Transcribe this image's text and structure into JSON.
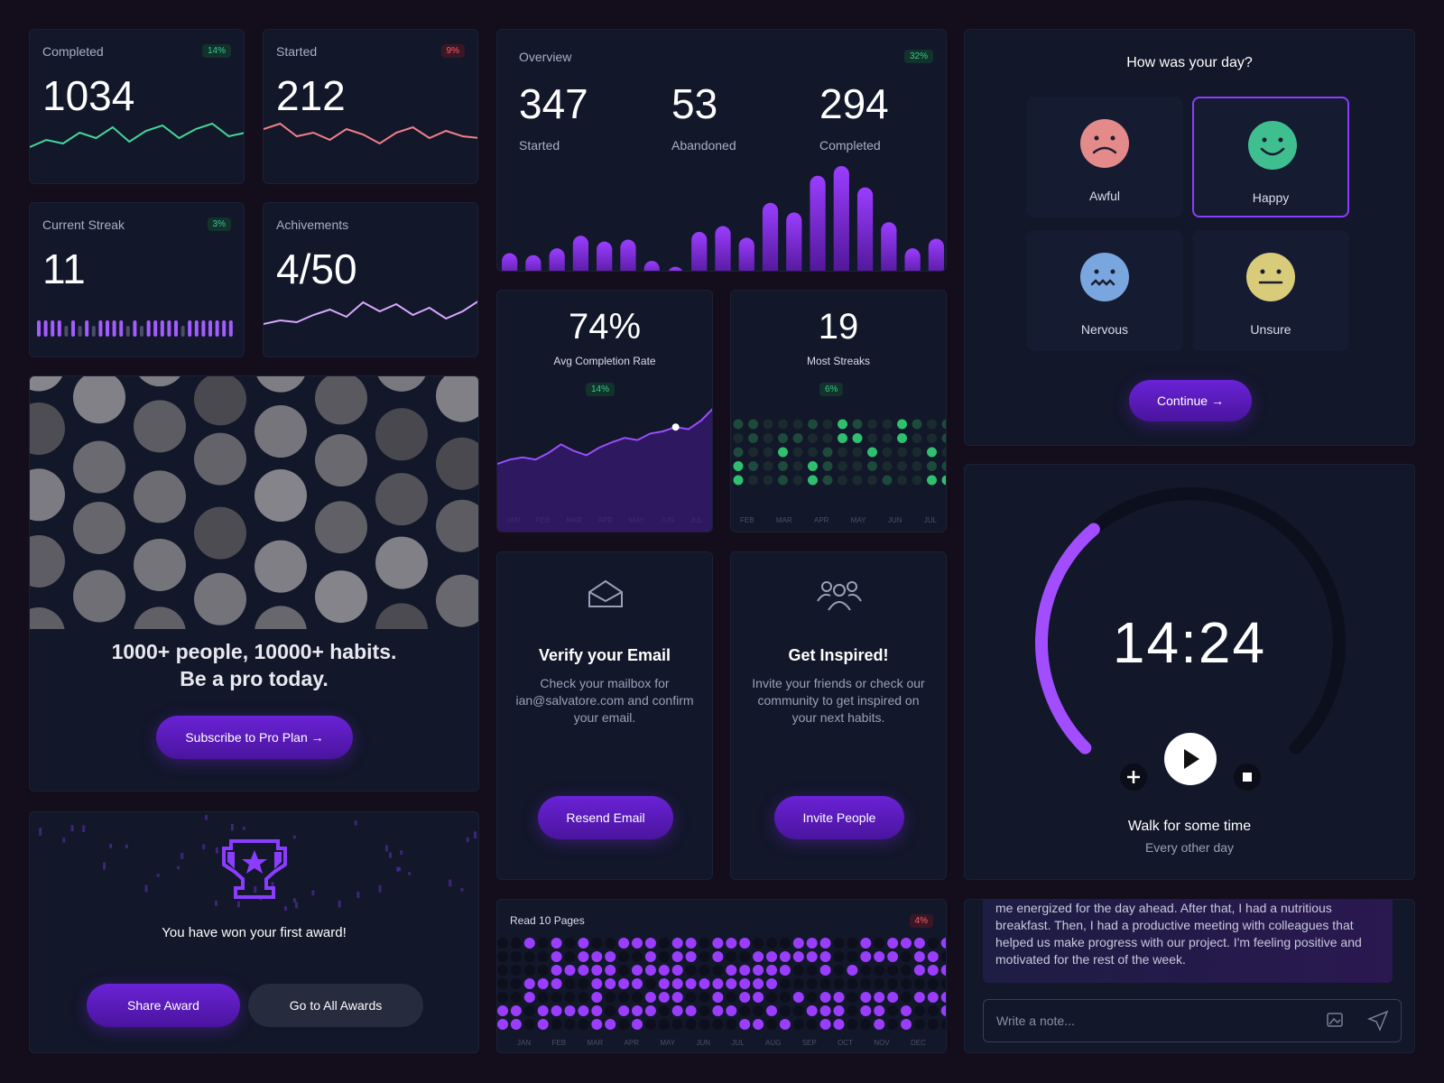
{
  "stats": [
    {
      "label": "Completed",
      "value": 1034,
      "change": "14%",
      "trend": "up",
      "color": "#45d69a",
      "sparkline": [
        40,
        48,
        44,
        56,
        50,
        62,
        46,
        58,
        64,
        50,
        60,
        66,
        52,
        56
      ]
    },
    {
      "label": "Started",
      "value": 212,
      "change": "9%",
      "trend": "down",
      "color": "#f2808a",
      "sparkline": [
        60,
        66,
        52,
        56,
        48,
        60,
        54,
        44,
        56,
        62,
        50,
        58,
        52,
        50
      ]
    },
    {
      "label": "Current Streak",
      "value": 11,
      "change": "3%",
      "trend": "up",
      "color": "#a35cff",
      "streak_days": [
        1,
        1,
        1,
        1,
        0,
        1,
        0,
        1,
        0,
        1,
        1,
        1,
        1,
        0,
        1,
        0,
        1,
        1,
        1,
        1,
        1,
        0,
        1,
        1,
        1,
        1,
        1,
        1,
        1
      ]
    },
    {
      "label": "Achivements",
      "value": "4/50",
      "color": "#d9a8ff",
      "sparkline": [
        36,
        40,
        38,
        46,
        52,
        44,
        60,
        50,
        58,
        46,
        54,
        42,
        50,
        62
      ]
    }
  ],
  "overview": {
    "title": "Overview",
    "change": "32%",
    "metrics": [
      {
        "value": 347,
        "label": "Started"
      },
      {
        "value": 53,
        "label": "Abandoned"
      },
      {
        "value": 294,
        "label": "Completed"
      }
    ],
    "bars": [
      20,
      18,
      25,
      38,
      32,
      34,
      12,
      6,
      42,
      48,
      36,
      72,
      62,
      100,
      110,
      88,
      52,
      25,
      35
    ],
    "color": "#9b3dff"
  },
  "completion": {
    "value": "74%",
    "label": "Avg Completion Rate",
    "change": "14%",
    "line": [
      40,
      44,
      46,
      44,
      50,
      58,
      52,
      48,
      55,
      60,
      64,
      62,
      68,
      70,
      74,
      72,
      80,
      92
    ],
    "highlight_index": 14,
    "months": [
      "JAN",
      "FEB",
      "MAR",
      "APR",
      "MAY",
      "JUN",
      "JUL"
    ]
  },
  "streaks": {
    "value": 19,
    "label": "Most Streaks",
    "change": "6%",
    "months": [
      "FEB",
      "MAR",
      "APR",
      "MAY",
      "JUN",
      "JUL"
    ]
  },
  "mood": {
    "title": "How was your day?",
    "options": [
      {
        "label": "Awful",
        "color": "#e58a8a"
      },
      {
        "label": "Happy",
        "color": "#3fbf8f"
      },
      {
        "label": "Nervous",
        "color": "#7aa6e0"
      },
      {
        "label": "Unsure",
        "color": "#d8cb7a"
      }
    ],
    "selected_index": 1,
    "button": "Continue →"
  },
  "promo": {
    "headline": [
      "1000+ people, 10000+ habits.",
      "Be a pro today."
    ],
    "button": "Subscribe to Pro Plan →"
  },
  "verify": {
    "title": "Verify your Email",
    "body": "Check your mailbox for ian@salvatore.com and confirm your email.",
    "button": "Resend Email"
  },
  "inspire": {
    "title": "Get Inspired!",
    "body": "Invite your friends or check our community to get inspired on your next habits.",
    "button": "Invite People"
  },
  "timer": {
    "time": "14:24",
    "task": "Walk for some time",
    "frequency": "Every other day",
    "progress": 35
  },
  "award": {
    "message": "You have won your first award!",
    "share": "Share Award",
    "all": "Go to All Awards"
  },
  "reading": {
    "title": "Read 10 Pages",
    "change": "4%",
    "months": [
      "JAN",
      "FEB",
      "MAR",
      "APR",
      "MAY",
      "JUN",
      "JUL",
      "AUG",
      "SEP",
      "OCT",
      "NOV",
      "DEC"
    ]
  },
  "journal": {
    "text": "me energized for the day ahead. After that, I had a nutritious breakfast. Then, I had a productive meeting with colleagues that helped us make progress with our project. I'm feeling positive and motivated for the rest of the week.",
    "placeholder": "Write a note..."
  }
}
